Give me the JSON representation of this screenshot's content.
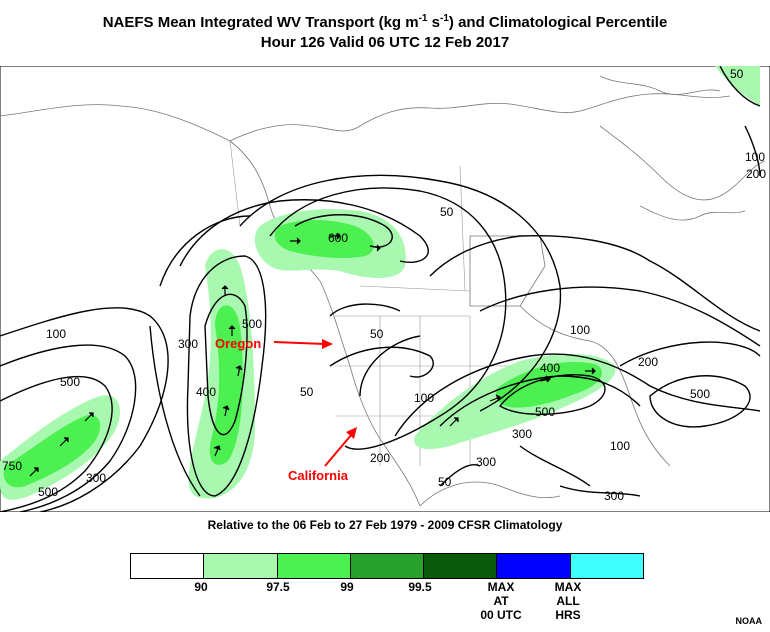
{
  "title": {
    "line1_prefix": "NAEFS Mean Integrated WV Transport (kg m",
    "sup1": "-1",
    "mid": " s",
    "sup2": "-1",
    "line1_suffix": ") and Climatological Percentile",
    "line2": "Hour 126 Valid 06 UTC 12 Feb 2017"
  },
  "subtitle": "Relative to the 06 Feb to 27 Feb 1979 - 2009 CFSR Climatology",
  "annotations": {
    "oregon": "Oregon",
    "california": "California"
  },
  "contour_labels": [
    "50",
    "600",
    "100",
    "300",
    "500",
    "400",
    "500",
    "50",
    "100",
    "50",
    "100",
    "200",
    "400",
    "500",
    "300",
    "500",
    "300",
    "200",
    "100",
    "750",
    "500",
    "300",
    "50",
    "300",
    "100",
    "200",
    "50"
  ],
  "legend": {
    "colors": [
      "#ffffff",
      "#a8f8b0",
      "#4cf050",
      "#28a02c",
      "#0a5a0c",
      "#0000ff",
      "#40ffff"
    ],
    "labels": [
      "90",
      "97.5",
      "99",
      "99.5",
      "MAX AT 00 UTC",
      "MAX ALL HRS"
    ]
  },
  "credit": "NOAA",
  "colors": {
    "annotation": "#ff0000",
    "shade_light": "#a8f8b0",
    "shade_mid": "#4cf050",
    "shade_dark": "#28a02c"
  }
}
